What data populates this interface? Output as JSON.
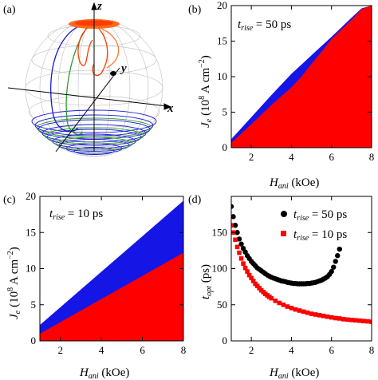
{
  "figure": {
    "panel_labels": [
      "(a)",
      "(b)",
      "(c)",
      "(d)"
    ],
    "sphere_axes": {
      "z": "z",
      "y": "y",
      "x": "x"
    }
  },
  "chart_data": [
    {
      "id": "b",
      "type": "area",
      "panel_label": "(b)",
      "annotation": {
        "var": "t",
        "sub": "rise",
        "text": " = 50 ps"
      },
      "xlabel": {
        "var": "H",
        "sub": "ani",
        "unit": " (kOe)"
      },
      "ylabel": {
        "var": "J",
        "sub": "e",
        "unit": "(10",
        "exp": "8",
        "unit2": " A cm",
        "exp2": "−2",
        "close": ")"
      },
      "xlim": [
        1,
        8
      ],
      "ylim": [
        0,
        20
      ],
      "xticks": [
        2,
        4,
        6,
        8
      ],
      "yticks": [
        0,
        5,
        10,
        15,
        20
      ],
      "colors": {
        "upper": "#1515e6",
        "lower": "#ff0000"
      },
      "series": [
        {
          "name": "upper boundary",
          "x": [
            1,
            2,
            3,
            4,
            5,
            6,
            7,
            7.5,
            8
          ],
          "y": [
            1.2,
            4.3,
            7.4,
            10.4,
            13.0,
            15.6,
            18.3,
            19.6,
            20
          ]
        },
        {
          "name": "lower boundary",
          "x": [
            1,
            2,
            3,
            4,
            4.5,
            5,
            5.5,
            6,
            7,
            7.5,
            8
          ],
          "y": [
            0.7,
            3.3,
            6.0,
            8.5,
            10.0,
            11.8,
            13.5,
            15.3,
            18.0,
            19.5,
            20
          ]
        }
      ]
    },
    {
      "id": "c",
      "type": "area",
      "panel_label": "(c)",
      "annotation": {
        "var": "t",
        "sub": "rise",
        "text": " = 10 ps"
      },
      "xlabel": {
        "var": "H",
        "sub": "ani",
        "unit": " (kOe)"
      },
      "ylabel": {
        "var": "J",
        "sub": "e",
        "unit": "(10",
        "exp": "8",
        "unit2": " A cm",
        "exp2": "−2",
        "close": ")"
      },
      "xlim": [
        1,
        8
      ],
      "ylim": [
        0,
        20
      ],
      "xticks": [
        2,
        4,
        6,
        8
      ],
      "yticks": [
        0,
        5,
        10,
        15,
        20
      ],
      "xtick_labels_shown": [
        "2",
        "4",
        "6",
        "8"
      ],
      "colors": {
        "upper": "#1515e6",
        "lower": "#ff0000"
      },
      "series": [
        {
          "name": "upper boundary",
          "x": [
            1,
            8
          ],
          "y": [
            2.2,
            19.4
          ]
        },
        {
          "name": "lower boundary",
          "x": [
            1,
            8
          ],
          "y": [
            1.0,
            12.2
          ]
        }
      ]
    },
    {
      "id": "d",
      "type": "scatter",
      "panel_label": "(d)",
      "xlabel": {
        "var": "H",
        "sub": "ani",
        "unit": " (kOe)"
      },
      "ylabel": {
        "var": "t",
        "sub": "opt",
        "unit": " (ps)"
      },
      "xlim": [
        1,
        8
      ],
      "ylim": [
        0,
        200
      ],
      "xticks": [
        2,
        4,
        6,
        8
      ],
      "yticks": [
        0,
        50,
        100,
        150
      ],
      "legend": [
        {
          "var": "t",
          "sub": "rise",
          "text": " = 50 ps",
          "color": "#000000",
          "marker": "circle"
        },
        {
          "var": "t",
          "sub": "rise",
          "text": " = 10 ps",
          "color": "#ff0000",
          "marker": "square"
        }
      ],
      "series": [
        {
          "name": "t_rise = 50 ps",
          "color": "#000000",
          "marker": "circle",
          "x": [
            1.0,
            1.1,
            1.2,
            1.3,
            1.4,
            1.5,
            1.6,
            1.7,
            1.8,
            1.9,
            2.0,
            2.1,
            2.2,
            2.3,
            2.4,
            2.5,
            2.6,
            2.7,
            2.8,
            2.9,
            3.0,
            3.1,
            3.2,
            3.3,
            3.4,
            3.5,
            3.6,
            3.7,
            3.8,
            3.9,
            4.0,
            4.1,
            4.2,
            4.3,
            4.4,
            4.5,
            4.6,
            4.7,
            4.8,
            4.9,
            5.0,
            5.1,
            5.2,
            5.3,
            5.4,
            5.5,
            5.6,
            5.7,
            5.8,
            5.9,
            6.0,
            6.1,
            6.2,
            6.3,
            6.4
          ],
          "y": [
            186,
            172,
            160,
            150,
            141,
            134,
            128,
            123,
            118,
            114,
            110,
            107,
            104,
            101,
            99,
            97,
            95,
            93,
            91,
            89.5,
            88,
            87,
            86,
            85,
            84,
            83,
            82.5,
            82,
            81,
            80.5,
            80,
            79.5,
            79.5,
            79,
            79,
            79,
            79,
            79,
            79.5,
            79.5,
            80,
            80.5,
            81,
            82,
            83,
            84,
            85.5,
            87,
            89,
            92,
            96,
            102,
            110,
            118,
            127
          ]
        },
        {
          "name": "t_rise = 10 ps",
          "color": "#ff0000",
          "marker": "square",
          "x": [
            1.0,
            1.1,
            1.2,
            1.3,
            1.4,
            1.5,
            1.6,
            1.7,
            1.8,
            1.9,
            2.0,
            2.1,
            2.2,
            2.3,
            2.4,
            2.5,
            2.6,
            2.7,
            2.8,
            2.9,
            3.0,
            3.2,
            3.4,
            3.6,
            3.8,
            4.0,
            4.2,
            4.4,
            4.6,
            4.8,
            5.0,
            5.2,
            5.4,
            5.6,
            5.8,
            6.0,
            6.2,
            6.4,
            6.6,
            6.8,
            7.0,
            7.2,
            7.4,
            7.6,
            7.8,
            8.0
          ],
          "y": [
            160,
            150,
            140,
            130,
            122,
            114,
            107,
            101,
            96,
            91,
            87,
            83,
            79,
            76,
            73,
            70,
            67.5,
            65,
            63,
            61,
            59,
            55.5,
            52.5,
            50,
            47.5,
            45.5,
            43.5,
            42,
            40.5,
            39,
            37.5,
            36.5,
            35.5,
            34.5,
            33.5,
            32.5,
            31.5,
            31,
            30,
            29.5,
            29,
            28.5,
            28,
            27.5,
            27,
            26.5
          ]
        }
      ]
    }
  ]
}
